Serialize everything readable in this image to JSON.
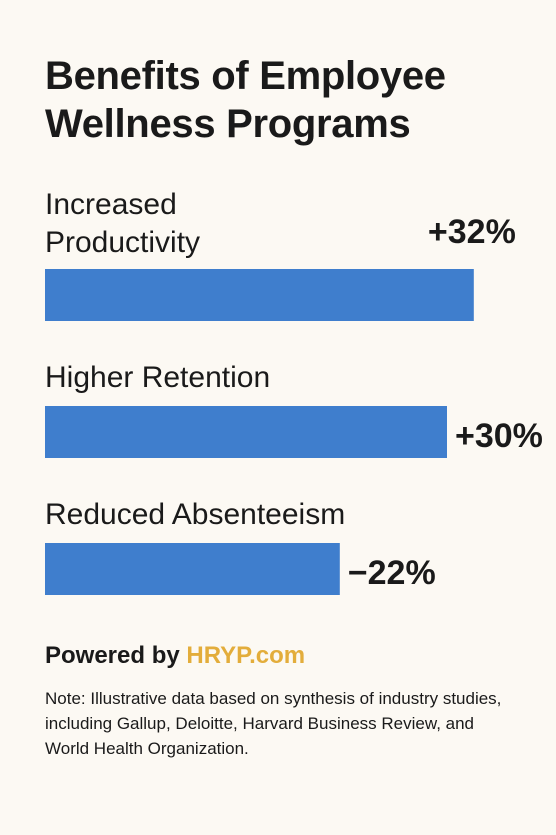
{
  "title": "Benefits of Employee Wellness Programs",
  "chart_data": {
    "type": "bar",
    "orientation": "horizontal",
    "categories": [
      "Increased Productivity",
      "Higher Retention",
      "Reduced Absenteeism"
    ],
    "values": [
      32,
      30,
      -22
    ],
    "value_labels": [
      "+32%",
      "+30%",
      "−22%"
    ],
    "unit": "%",
    "bar_color": "#3f7ecd",
    "grid": false,
    "legend": "none"
  },
  "footer": {
    "powered_prefix": "Powered by",
    "powered_brand": "HRYP.com",
    "brand_color": "#e3ad3b",
    "note": "Note: Illustrative data based on synthesis of industry studies, including Gallup, Deloitte, Harvard Business Review, and World Health Organization."
  }
}
